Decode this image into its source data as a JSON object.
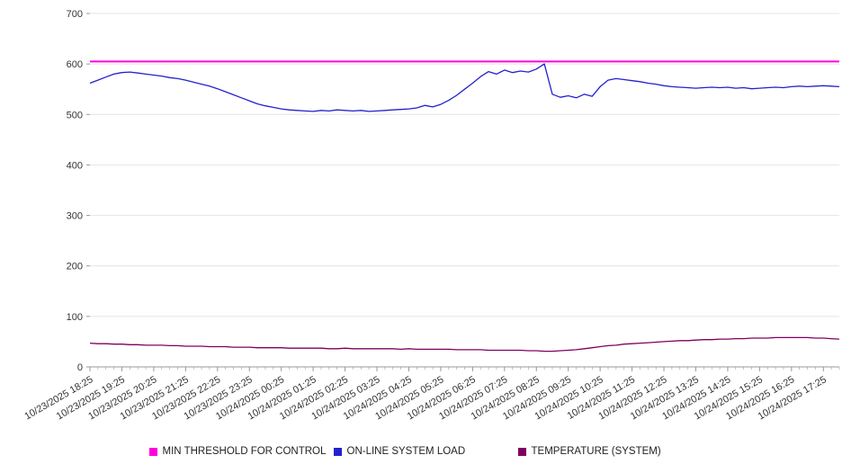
{
  "chart_data": {
    "type": "line",
    "title": "",
    "ylabel": "",
    "xlabel": "",
    "ylim": [
      0,
      700
    ],
    "y_ticks": [
      0,
      100,
      200,
      300,
      400,
      500,
      600,
      700
    ],
    "grid": "horizontal",
    "legend_position": "bottom",
    "background": "#ffffff",
    "grid_color": "#e4e4e4",
    "axis_color": "#999999",
    "tick_label_color": "#333333",
    "points_per_label": 4,
    "x_tick_labels": [
      "10/23/2025 18:25",
      "10/23/2025 19:25",
      "10/23/2025 20:25",
      "10/23/2025 21:25",
      "10/23/2025 22:25",
      "10/23/2025 23:25",
      "10/24/2025 00:25",
      "10/24/2025 01:25",
      "10/24/2025 02:25",
      "10/24/2025 03:25",
      "10/24/2025 04:25",
      "10/24/2025 05:25",
      "10/24/2025 06:25",
      "10/24/2025 07:25",
      "10/24/2025 08:25",
      "10/24/2025 09:25",
      "10/24/2025 10:25",
      "10/24/2025 11:25",
      "10/24/2025 12:25",
      "10/24/2025 13:25",
      "10/24/2025 14:25",
      "10/24/2025 15:25",
      "10/24/2025 16:25",
      "10/24/2025 17:25"
    ],
    "series": [
      {
        "name": "MIN THRESHOLD FOR CONTROL",
        "color": "#ff00dd",
        "constant": 605
      },
      {
        "name": "ON-LINE SYSTEM LOAD",
        "color": "#2222cc",
        "values": [
          562,
          568,
          574,
          580,
          583,
          584,
          582,
          580,
          578,
          576,
          573,
          571,
          568,
          564,
          560,
          556,
          551,
          545,
          539,
          533,
          527,
          521,
          517,
          514,
          511,
          509,
          508,
          507,
          506,
          508,
          507,
          509,
          508,
          507,
          508,
          506,
          507,
          508,
          509,
          510,
          511,
          513,
          518,
          515,
          520,
          528,
          538,
          550,
          562,
          575,
          585,
          580,
          588,
          583,
          586,
          584,
          590,
          600,
          540,
          534,
          537,
          533,
          540,
          536,
          555,
          568,
          571,
          569,
          567,
          565,
          562,
          560,
          557,
          555,
          554,
          553,
          552,
          553,
          554,
          553,
          554,
          552,
          553,
          551,
          552,
          553,
          554,
          553,
          555,
          556,
          555,
          556,
          557,
          556,
          555
        ]
      },
      {
        "name": "TEMPERATURE (SYSTEM)",
        "color": "#800060",
        "values": [
          47,
          46,
          46,
          45,
          45,
          44,
          44,
          43,
          43,
          43,
          42,
          42,
          41,
          41,
          41,
          40,
          40,
          40,
          39,
          39,
          39,
          38,
          38,
          38,
          38,
          37,
          37,
          37,
          37,
          37,
          36,
          36,
          37,
          36,
          36,
          36,
          36,
          36,
          36,
          35,
          36,
          35,
          35,
          35,
          35,
          35,
          34,
          34,
          34,
          34,
          33,
          33,
          33,
          33,
          33,
          32,
          32,
          31,
          31,
          32,
          33,
          34,
          36,
          38,
          40,
          42,
          43,
          45,
          46,
          47,
          48,
          49,
          50,
          51,
          52,
          52,
          53,
          54,
          54,
          55,
          55,
          56,
          56,
          57,
          57,
          57,
          58,
          58,
          58,
          58,
          58,
          57,
          57,
          56,
          55
        ]
      }
    ]
  }
}
